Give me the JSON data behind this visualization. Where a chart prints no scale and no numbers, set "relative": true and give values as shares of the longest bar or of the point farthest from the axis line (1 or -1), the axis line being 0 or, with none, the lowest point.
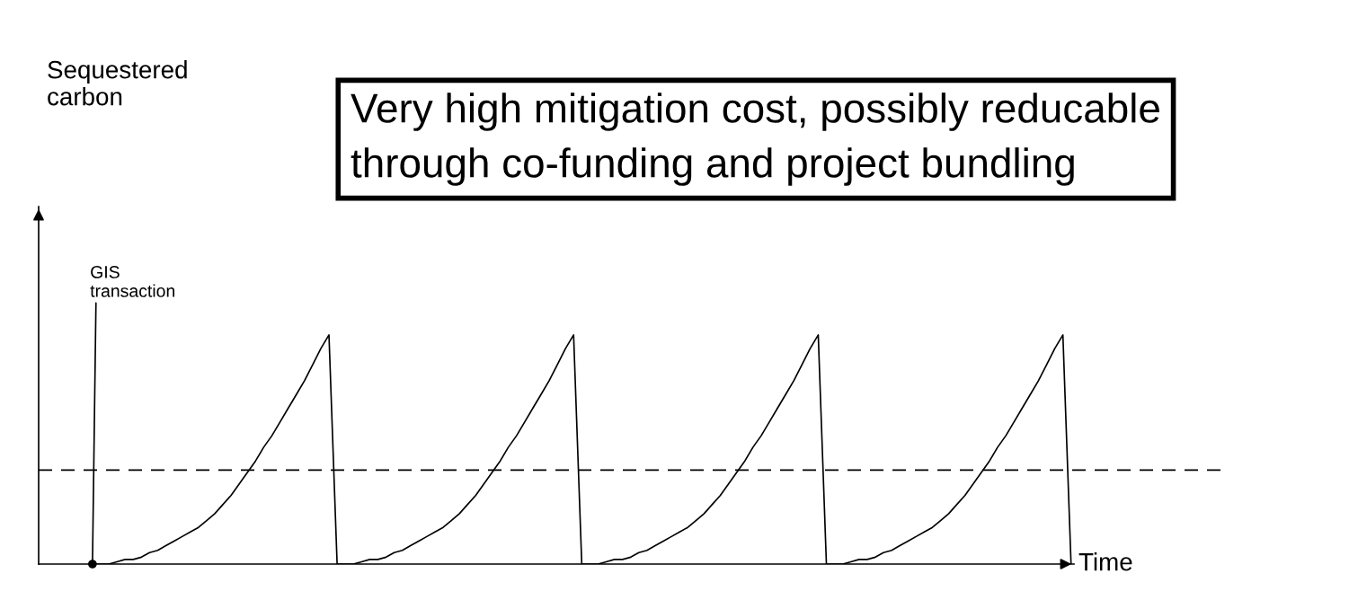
{
  "chart_data": {
    "type": "line",
    "relative": true,
    "xlabel": "Time",
    "annotations": [
      "Sequestered carbon",
      "Very high mitigation cost, possibly reducable through co-funding and project bundling",
      "GIS\ntransaction"
    ],
    "marker": "none",
    "line_style": "solid",
    "categories": [
      null,
      null,
      null,
      null,
      null,
      null,
      null,
      null,
      null,
      null,
      null,
      null,
      null,
      null,
      null,
      null,
      null,
      null,
      null,
      null,
      null,
      null,
      null,
      null,
      null,
      null,
      null,
      null,
      null,
      null,
      null,
      null,
      null,
      null,
      null,
      null,
      null,
      null,
      null,
      null,
      null,
      null,
      null,
      null,
      null,
      null,
      null,
      null,
      null,
      null,
      null,
      null,
      null,
      null,
      null,
      null,
      null,
      null,
      null,
      null,
      null,
      null,
      null,
      null,
      null,
      null,
      null,
      null,
      null,
      null,
      null,
      null,
      null,
      null,
      null,
      null,
      null,
      null,
      null,
      null,
      null,
      null,
      null,
      null,
      null,
      null,
      null,
      null,
      null,
      null,
      null,
      null,
      null,
      null,
      null,
      null,
      null,
      null,
      null,
      null,
      null,
      null,
      null,
      null,
      null,
      null,
      null,
      null,
      null,
      null,
      null,
      null,
      null,
      null,
      null,
      null,
      null,
      null,
      null,
      null,
      null
    ],
    "series": [
      {
        "color": "#000000",
        "values": [
          0,
          0,
          0,
          0.01,
          0.02,
          0.02,
          0.03,
          0.05,
          0.06,
          0.08,
          0.1,
          0.12,
          0.14,
          0.16,
          0.19,
          0.22,
          0.26,
          0.3,
          0.35,
          0.4,
          0.45,
          0.51,
          0.56,
          0.62,
          0.68,
          0.74,
          0.8,
          0.87,
          0.94,
          1.0,
          0,
          0,
          0,
          0.01,
          0.02,
          0.02,
          0.03,
          0.05,
          0.06,
          0.08,
          0.1,
          0.12,
          0.14,
          0.16,
          0.19,
          0.22,
          0.26,
          0.3,
          0.35,
          0.4,
          0.45,
          0.51,
          0.56,
          0.62,
          0.68,
          0.74,
          0.8,
          0.87,
          0.94,
          1.0,
          0,
          0,
          0,
          0.01,
          0.02,
          0.02,
          0.03,
          0.05,
          0.06,
          0.08,
          0.1,
          0.12,
          0.14,
          0.16,
          0.19,
          0.22,
          0.26,
          0.3,
          0.35,
          0.4,
          0.45,
          0.51,
          0.56,
          0.62,
          0.68,
          0.74,
          0.8,
          0.87,
          0.94,
          1.0,
          0,
          0,
          0,
          0.01,
          0.02,
          0.02,
          0.03,
          0.05,
          0.06,
          0.08,
          0.1,
          0.12,
          0.14,
          0.16,
          0.19,
          0.22,
          0.26,
          0.3,
          0.35,
          0.4,
          0.45,
          0.51,
          0.56,
          0.62,
          0.68,
          0.74,
          0.8,
          0.87,
          0.94,
          1.0,
          0
        ]
      }
    ],
    "ref_lines": [
      {
        "axis": "y",
        "value": 0.41,
        "color": "#000000",
        "line_style": "dashed"
      }
    ]
  }
}
